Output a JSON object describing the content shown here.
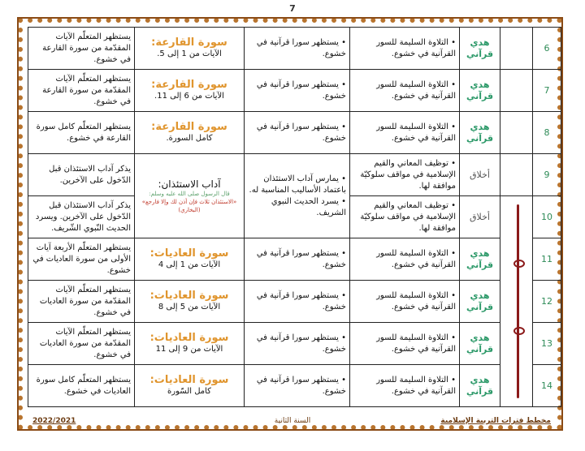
{
  "page_number": "7",
  "colors": {
    "frame": "#b8742e",
    "domain": "#2e9a6a",
    "surah_title": "#e0952e",
    "row_number": "#2e8b57"
  },
  "rows": [
    {
      "num": "6",
      "domain": "هدي قرآني",
      "objective": "• التلاوة السليمة للسور القرآنية في خشوع.",
      "target": "• يستظهر سورا قرآنية في خشوع.",
      "surah": "سورة القارعة:",
      "verses": "الآيات من 1 إلى 5.",
      "evaluation": "يستظهر المتعلّم الآيات المقدّمة من سورة القارعة في خشوع."
    },
    {
      "num": "7",
      "domain": "هدي قرآني",
      "objective": "• التلاوة السليمة للسور القرآنية في خشوع.",
      "target": "• يستظهر سورا قرآنية في خشوع.",
      "surah": "سورة القارعة:",
      "verses": "الآيات من 6 إلى 11.",
      "evaluation": "يستظهر المتعلّم الآيات المقدّمة من سورة القارعة في خشوع."
    },
    {
      "num": "8",
      "domain": "هدي قرآني",
      "objective": "• التلاوة السليمة للسور القرآنية في خشوع.",
      "target": "• يستظهر سورا قرآنية في خشوع.",
      "surah": "سورة القارعة:",
      "verses": "كامل السورة.",
      "evaluation": "يستظهر المتعلّم كامل سورة القارعة في خشوع."
    },
    {
      "num": "9",
      "domain": "أخلاق",
      "objective": "• توظيف المعاني والقيم الإسلامية في مواقف سلوكيّة موافقة لها.",
      "evaluation": "يذكر آداب الاستئذان قبل الدّخول على الآخرين."
    },
    {
      "num": "10",
      "domain": "أخلاق",
      "objective": "• توظيف المعاني والقيم الإسلامية في مواقف سلوكيّة موافقة لها.",
      "evaluation": "يذكر آداب الاستئذان قبل الدّخول على الآخرين. ويسرد الحديث النّبوي الشّريف."
    },
    {
      "num": "11",
      "domain": "هدي قرآني",
      "objective": "• التلاوة السليمة للسور القرآنية في خشوع.",
      "target": "• يستظهر سورا قرآنية في خشوع.",
      "surah": "سورة العاديات:",
      "verses": "الآيات من 1 إلى 4",
      "evaluation": "يستظهر المتعلّم الأربعة آيات الأولى من سورة العاديات في خشوع."
    },
    {
      "num": "12",
      "domain": "هدي قرآني",
      "objective": "• التلاوة السليمة للسور القرآنية في خشوع.",
      "target": "• يستظهر سورا قرآنية في خشوع.",
      "surah": "سورة العاديات:",
      "verses": "الآيات من 5 إلى 8",
      "evaluation": "يستظهر المتعلّم الآيات المقدّمة من سورة العاديات في خشوع."
    },
    {
      "num": "13",
      "domain": "هدي قرآني",
      "objective": "• التلاوة السليمة للسور القرآنية في خشوع.",
      "target": "• يستظهر سورا قرآنية في خشوع.",
      "surah": "سورة العاديات:",
      "verses": "الآيات من 9 إلى 11",
      "evaluation": "يستظهر المتعلّم الآيات المقدّمة من سورة العاديات في خشوع."
    },
    {
      "num": "14",
      "domain": "هدي قرآني",
      "objective": "• التلاوة السليمة للسور القرآنية في خشوع.",
      "target": "• يستظهر سورا قرآنية في خشوع.",
      "surah": "سورة العاديات:",
      "verses": "كامل السّورة",
      "evaluation": "يستظهر المتعلّم كامل سورة العاديات في خشوع."
    }
  ],
  "merged": {
    "target_9_10": "• يمارس آداب الاستئذان باعتماد الأساليب المناسبة له. • يسرد الحديث النبوي الشريف.",
    "content_title": "آداب الاستئذان:",
    "hadith_intro": "قال الرسول صلى الله عليه وسلم:",
    "hadith_text": "«الاستئذان ثلاث فإن أذن لك وإلا فارجع»",
    "hadith_source": "(البخاري)"
  },
  "footer": {
    "left": "2022/2021",
    "center": "السنة الثانية",
    "right": "مخطط فترات التربية الإسلامية"
  }
}
